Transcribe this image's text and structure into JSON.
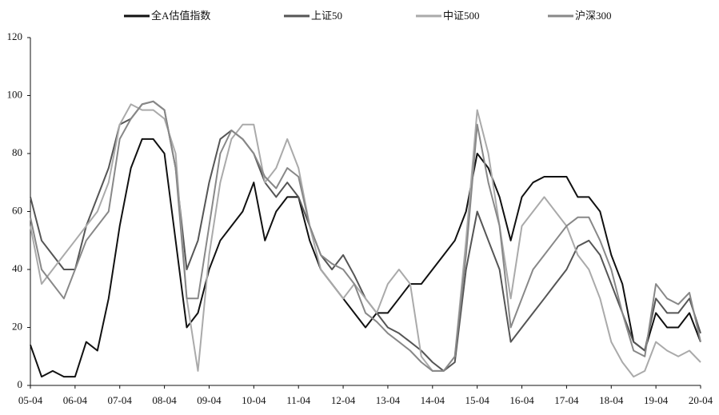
{
  "chart_data": {
    "type": "line",
    "categories": [
      "05-04",
      null,
      null,
      null,
      "06-04",
      null,
      null,
      null,
      "07-04",
      null,
      null,
      null,
      "08-04",
      null,
      null,
      null,
      "09-04",
      null,
      null,
      null,
      "10-04",
      null,
      null,
      null,
      "11-04",
      null,
      null,
      null,
      "12-04",
      null,
      null,
      null,
      "13-04",
      null,
      null,
      null,
      "14-04",
      null,
      null,
      null,
      "15-04",
      null,
      null,
      null,
      "16-04",
      null,
      null,
      null,
      "17-04",
      null,
      null,
      null,
      "18-04",
      null,
      null,
      null,
      "19-04",
      null,
      null,
      null,
      "20-04"
    ],
    "series": [
      {
        "name": "全A估值指数",
        "color": "#111111",
        "values": [
          14,
          3,
          5,
          3,
          3,
          15,
          12,
          30,
          55,
          75,
          85,
          85,
          80,
          50,
          20,
          25,
          40,
          50,
          55,
          60,
          70,
          50,
          60,
          65,
          65,
          50,
          40,
          35,
          30,
          25,
          20,
          25,
          25,
          30,
          35,
          35,
          40,
          45,
          50,
          60,
          80,
          75,
          65,
          50,
          65,
          70,
          72,
          72,
          72,
          65,
          65,
          60,
          45,
          35,
          15,
          12,
          25,
          20,
          20,
          25,
          15
        ]
      },
      {
        "name": "上证50",
        "color": "#555555",
        "values": [
          65,
          50,
          45,
          40,
          40,
          55,
          65,
          75,
          90,
          92,
          97,
          98,
          95,
          75,
          40,
          50,
          70,
          85,
          88,
          85,
          80,
          70,
          65,
          70,
          65,
          55,
          45,
          40,
          45,
          38,
          30,
          25,
          20,
          18,
          15,
          12,
          8,
          5,
          8,
          40,
          60,
          50,
          40,
          15,
          20,
          25,
          30,
          35,
          40,
          48,
          50,
          45,
          35,
          25,
          15,
          12,
          30,
          25,
          25,
          30,
          18
        ]
      },
      {
        "name": "中证500",
        "color": "#aaaaaa",
        "values": [
          55,
          35,
          40,
          45,
          50,
          55,
          60,
          70,
          90,
          97,
          95,
          95,
          92,
          80,
          30,
          5,
          45,
          70,
          85,
          90,
          90,
          70,
          75,
          85,
          75,
          55,
          40,
          35,
          30,
          35,
          30,
          25,
          35,
          40,
          35,
          10,
          5,
          5,
          10,
          50,
          95,
          80,
          55,
          30,
          55,
          60,
          65,
          60,
          55,
          45,
          40,
          30,
          15,
          8,
          3,
          5,
          15,
          12,
          10,
          12,
          8
        ]
      },
      {
        "name": "沪深300",
        "color": "#888888",
        "values": [
          58,
          40,
          35,
          30,
          40,
          50,
          55,
          60,
          85,
          92,
          97,
          98,
          95,
          75,
          30,
          30,
          55,
          80,
          88,
          85,
          80,
          72,
          68,
          75,
          72,
          55,
          45,
          42,
          40,
          35,
          25,
          22,
          18,
          15,
          12,
          8,
          5,
          5,
          10,
          45,
          90,
          70,
          55,
          20,
          30,
          40,
          45,
          50,
          55,
          58,
          58,
          50,
          40,
          25,
          12,
          10,
          35,
          30,
          28,
          32,
          15
        ]
      }
    ],
    "ylim": [
      0,
      120
    ],
    "yticks": [
      0,
      20,
      40,
      60,
      80,
      100,
      120
    ],
    "grid": false,
    "legend": "top"
  }
}
